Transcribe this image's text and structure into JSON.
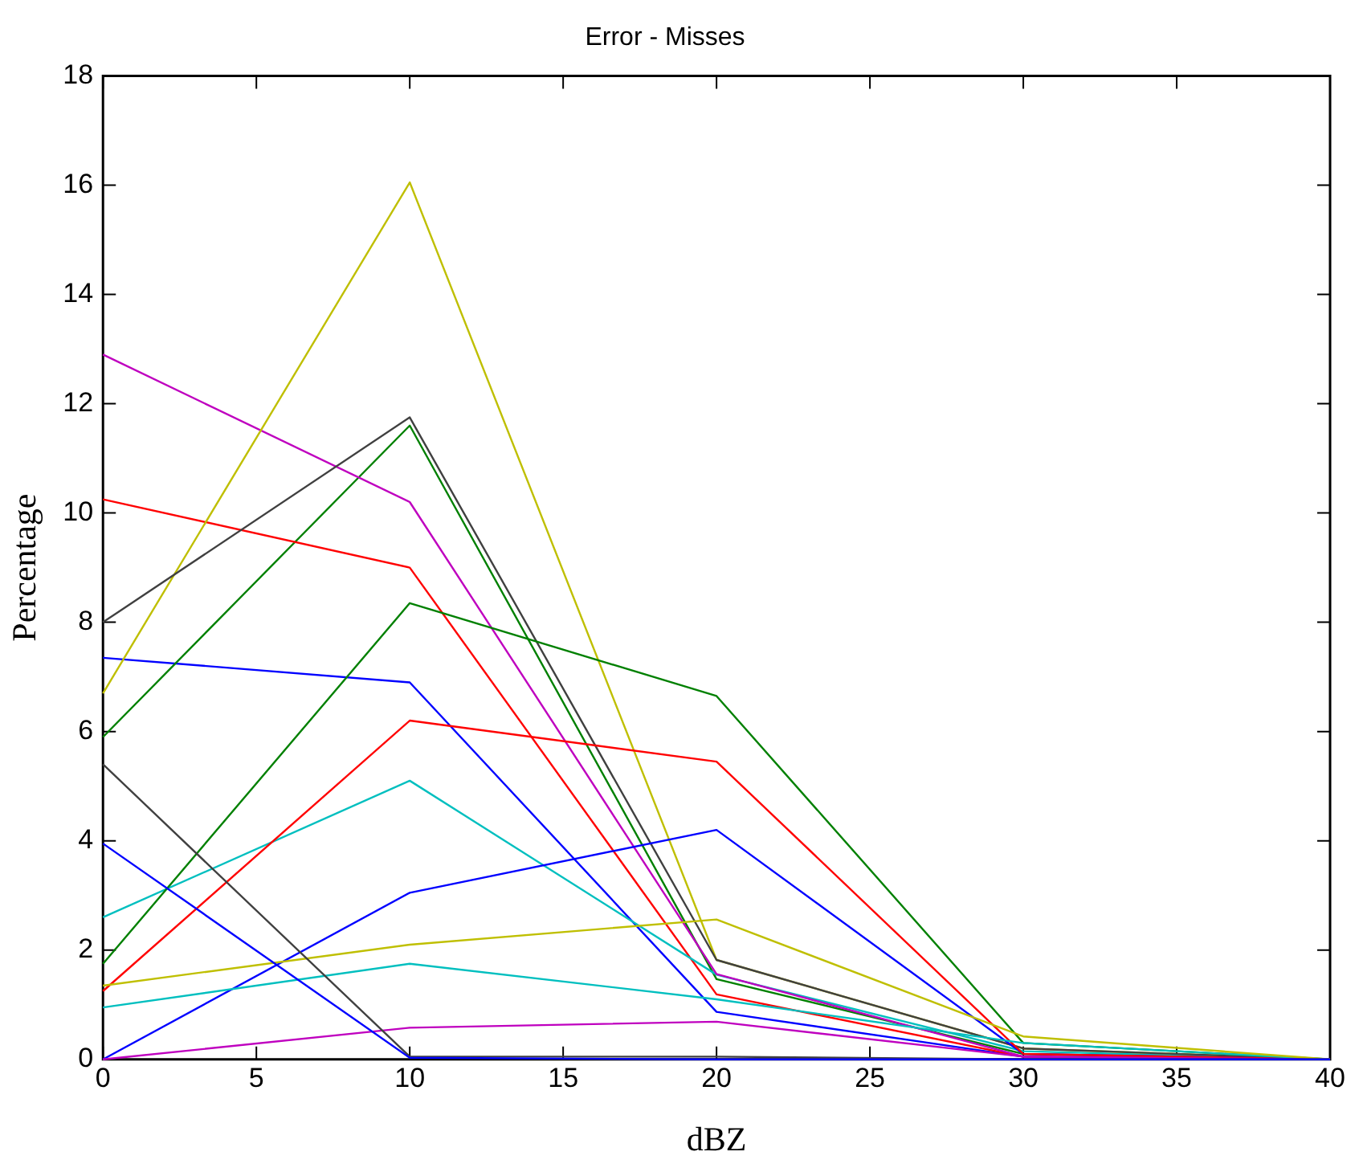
{
  "chart_data": {
    "type": "line",
    "title": "Error - Misses",
    "xlabel": "dBZ",
    "ylabel": "Percentage",
    "x": [
      0,
      10,
      20,
      30,
      40
    ],
    "series": [
      {
        "color": "#0000ff",
        "values": [
          7.35,
          6.9,
          0.87,
          0.05,
          0
        ]
      },
      {
        "color": "#008000",
        "values": [
          5.9,
          11.6,
          1.47,
          0.1,
          0
        ]
      },
      {
        "color": "#ff0000",
        "values": [
          10.25,
          9.0,
          1.19,
          0.05,
          0
        ]
      },
      {
        "color": "#00bfbf",
        "values": [
          2.6,
          5.1,
          1.55,
          0.15,
          0
        ]
      },
      {
        "color": "#bf00bf",
        "values": [
          12.9,
          10.2,
          1.56,
          0.05,
          0
        ]
      },
      {
        "color": "#bfbf00",
        "values": [
          6.7,
          16.05,
          1.82,
          0.2,
          0
        ]
      },
      {
        "color": "#404040",
        "values": [
          8.0,
          11.75,
          1.82,
          0.2,
          0
        ]
      },
      {
        "color": "#0000ff",
        "values": [
          0,
          3.05,
          4.2,
          0.1,
          0
        ]
      },
      {
        "color": "#008000",
        "values": [
          1.75,
          8.35,
          6.65,
          0.3,
          0
        ]
      },
      {
        "color": "#ff0000",
        "values": [
          1.25,
          6.2,
          5.45,
          0.1,
          0
        ]
      },
      {
        "color": "#00bfbf",
        "values": [
          0.95,
          1.75,
          1.1,
          0.3,
          0
        ]
      },
      {
        "color": "#bf00bf",
        "values": [
          0,
          0.58,
          0.69,
          0.05,
          0
        ]
      },
      {
        "color": "#bfbf00",
        "values": [
          1.35,
          2.1,
          2.56,
          0.42,
          0
        ]
      },
      {
        "color": "#404040",
        "values": [
          5.4,
          0.05,
          0.05,
          0,
          0
        ]
      },
      {
        "color": "#0000ff",
        "values": [
          3.95,
          0.03,
          0,
          0,
          0
        ]
      }
    ],
    "xlim": [
      0,
      40
    ],
    "xticks": [
      0,
      5,
      10,
      15,
      20,
      25,
      30,
      35,
      40
    ],
    "ylim": [
      0,
      18
    ],
    "yticks": [
      0,
      2,
      4,
      6,
      8,
      10,
      12,
      14,
      16,
      18
    ],
    "grid": false,
    "legend": false,
    "marker": "none",
    "line_style": "solid"
  }
}
